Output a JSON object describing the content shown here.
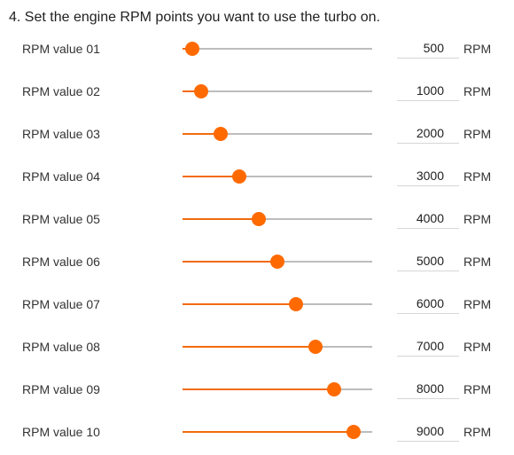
{
  "heading": "4. Set the engine RPM points you want to use the turbo on.",
  "slider_range": {
    "min": 0,
    "max": 10000
  },
  "colors": {
    "accent": "#ff6a00",
    "track": "#bdbdbd",
    "field_underline": "#d6d6d6"
  },
  "rows": [
    {
      "label": "RPM value 01",
      "value": "500",
      "unit": "RPM",
      "slider_fraction": 0.05
    },
    {
      "label": "RPM value 02",
      "value": "1000",
      "unit": "RPM",
      "slider_fraction": 0.1
    },
    {
      "label": "RPM value 03",
      "value": "2000",
      "unit": "RPM",
      "slider_fraction": 0.2
    },
    {
      "label": "RPM value 04",
      "value": "3000",
      "unit": "RPM",
      "slider_fraction": 0.3
    },
    {
      "label": "RPM value 05",
      "value": "4000",
      "unit": "RPM",
      "slider_fraction": 0.4
    },
    {
      "label": "RPM value 06",
      "value": "5000",
      "unit": "RPM",
      "slider_fraction": 0.5
    },
    {
      "label": "RPM value 07",
      "value": "6000",
      "unit": "RPM",
      "slider_fraction": 0.6
    },
    {
      "label": "RPM value 08",
      "value": "7000",
      "unit": "RPM",
      "slider_fraction": 0.7
    },
    {
      "label": "RPM value 09",
      "value": "8000",
      "unit": "RPM",
      "slider_fraction": 0.8
    },
    {
      "label": "RPM value 10",
      "value": "9000",
      "unit": "RPM",
      "slider_fraction": 0.9
    }
  ]
}
